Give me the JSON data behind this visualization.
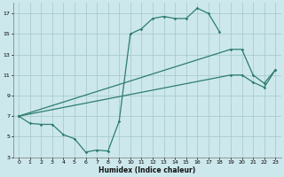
{
  "xlabel": "Humidex (Indice chaleur)",
  "bg_color": "#cce8ec",
  "grid_color": "#aacccc",
  "line_color": "#2e7d6e",
  "xlim": [
    -0.5,
    23.5
  ],
  "ylim": [
    3,
    18
  ],
  "yticks": [
    3,
    5,
    7,
    9,
    11,
    13,
    15,
    17
  ],
  "xticks": [
    0,
    1,
    2,
    3,
    4,
    5,
    6,
    7,
    8,
    9,
    10,
    11,
    12,
    13,
    14,
    15,
    16,
    17,
    18,
    19,
    20,
    21,
    22,
    23
  ],
  "line1_x": [
    0,
    1,
    2,
    3,
    4,
    5,
    6,
    7,
    8,
    9,
    10,
    11,
    12,
    13,
    14,
    15,
    16,
    17,
    18
  ],
  "line1_y": [
    7.0,
    6.3,
    6.2,
    6.2,
    5.2,
    4.8,
    3.5,
    3.7,
    3.6,
    6.5,
    15.0,
    15.5,
    16.5,
    16.7,
    16.5,
    16.5,
    17.5,
    17.0,
    15.2
  ],
  "line2_x": [
    0,
    19,
    20,
    21,
    22,
    23
  ],
  "line2_y": [
    7.0,
    13.5,
    13.5,
    11.0,
    10.2,
    11.5
  ],
  "line3_x": [
    0,
    19,
    20,
    21,
    22,
    23
  ],
  "line3_y": [
    7.0,
    11.0,
    11.0,
    10.3,
    9.8,
    11.5
  ]
}
